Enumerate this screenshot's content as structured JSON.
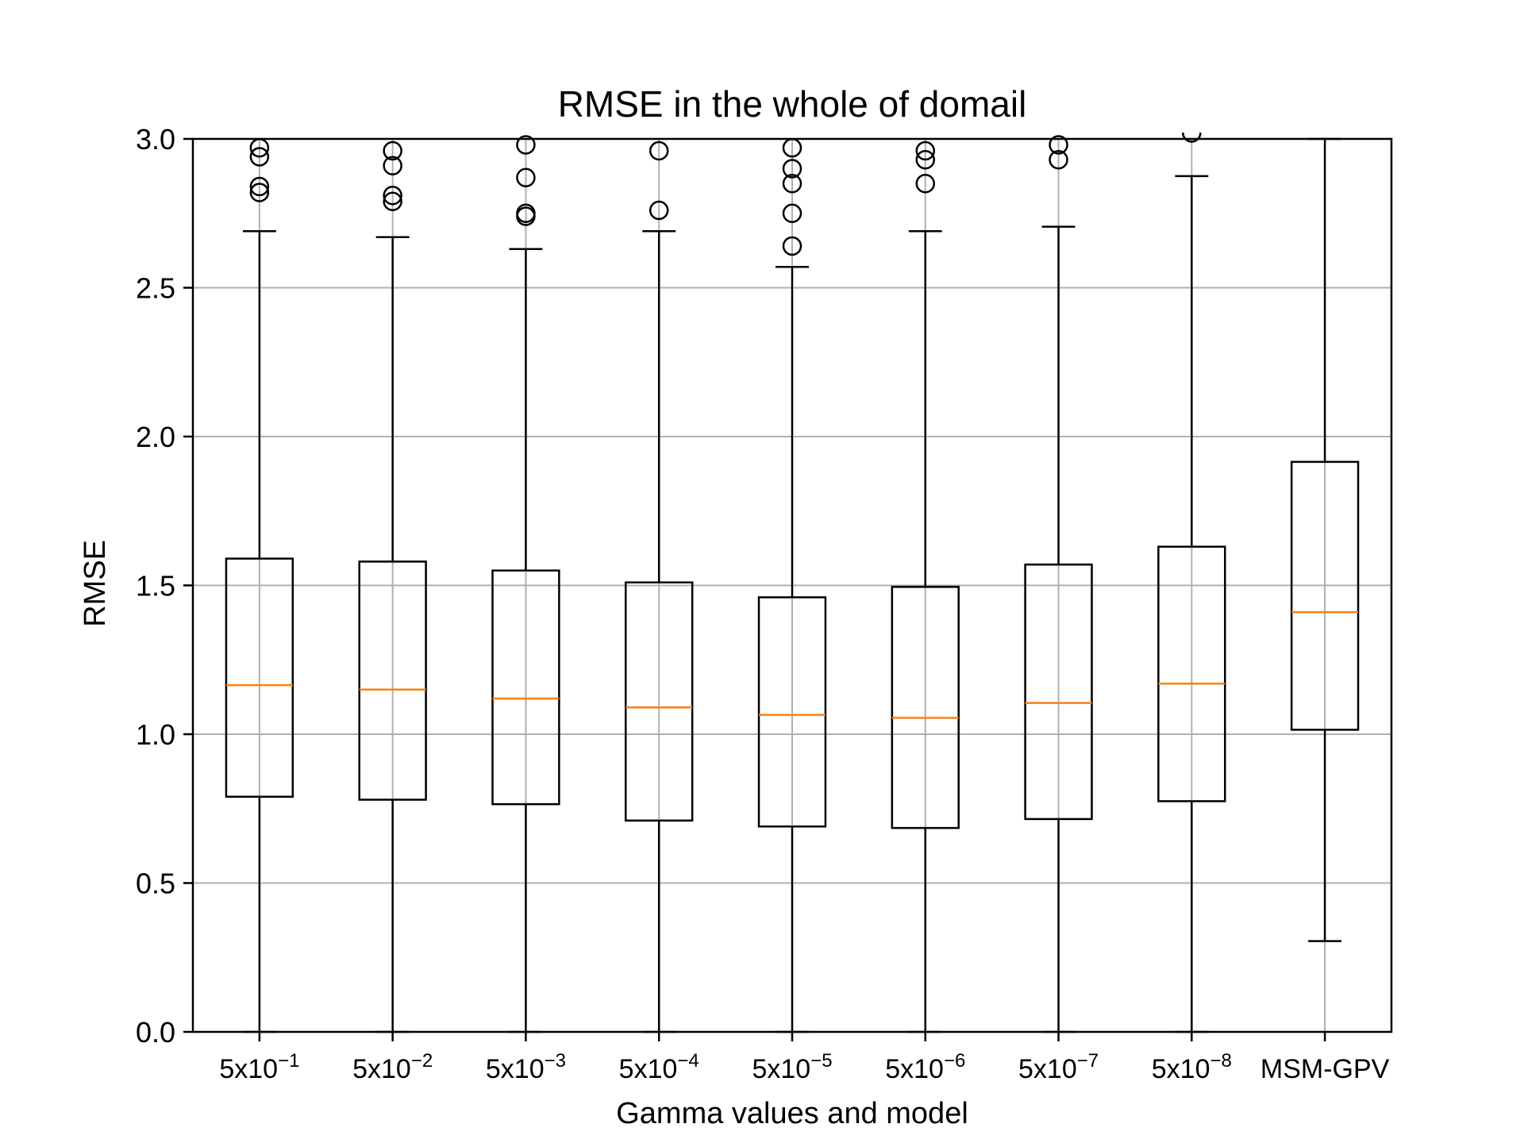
{
  "chart_data": {
    "type": "box",
    "title": "RMSE in the whole of domail",
    "xlabel": "Gamma values and model",
    "ylabel": "RMSE",
    "ylim": [
      0,
      3.0
    ],
    "yticks": [
      0.0,
      0.5,
      1.0,
      1.5,
      2.0,
      2.5,
      3.0
    ],
    "ytick_labels": [
      "0.0",
      "0.5",
      "1.0",
      "1.5",
      "2.0",
      "2.5",
      "3.0"
    ],
    "grid": true,
    "categories": [
      {
        "base": "5x10",
        "exp": "−1"
      },
      {
        "base": "5x10",
        "exp": "−2"
      },
      {
        "base": "5x10",
        "exp": "−3"
      },
      {
        "base": "5x10",
        "exp": "−4"
      },
      {
        "base": "5x10",
        "exp": "−5"
      },
      {
        "base": "5x10",
        "exp": "−6"
      },
      {
        "base": "5x10",
        "exp": "−7"
      },
      {
        "base": "5x10",
        "exp": "−8"
      },
      {
        "base": "MSM-GPV",
        "exp": ""
      }
    ],
    "boxes": [
      {
        "whisker_low": 0.0,
        "q1": 0.79,
        "median": 1.165,
        "q3": 1.59,
        "whisker_high": 2.69,
        "outliers": [
          2.82,
          2.84,
          2.94,
          2.97
        ]
      },
      {
        "whisker_low": 0.0,
        "q1": 0.78,
        "median": 1.15,
        "q3": 1.58,
        "whisker_high": 2.67,
        "outliers": [
          2.79,
          2.81,
          2.91,
          2.96
        ]
      },
      {
        "whisker_low": 0.0,
        "q1": 0.765,
        "median": 1.12,
        "q3": 1.55,
        "whisker_high": 2.63,
        "outliers": [
          2.74,
          2.75,
          2.87,
          2.98
        ]
      },
      {
        "whisker_low": 0.0,
        "q1": 0.71,
        "median": 1.09,
        "q3": 1.51,
        "whisker_high": 2.69,
        "outliers": [
          2.76,
          2.96
        ]
      },
      {
        "whisker_low": 0.0,
        "q1": 0.69,
        "median": 1.065,
        "q3": 1.46,
        "whisker_high": 2.57,
        "outliers": [
          2.64,
          2.75,
          2.85,
          2.9,
          2.97
        ]
      },
      {
        "whisker_low": 0.0,
        "q1": 0.685,
        "median": 1.055,
        "q3": 1.495,
        "whisker_high": 2.69,
        "outliers": [
          2.85,
          2.93,
          2.96
        ]
      },
      {
        "whisker_low": 0.0,
        "q1": 0.715,
        "median": 1.105,
        "q3": 1.57,
        "whisker_high": 2.705,
        "outliers": [
          2.93,
          2.98
        ]
      },
      {
        "whisker_low": 0.0,
        "q1": 0.775,
        "median": 1.17,
        "q3": 1.63,
        "whisker_high": 2.875,
        "outliers": [
          3.02
        ]
      },
      {
        "whisker_low": 0.305,
        "q1": 1.015,
        "median": 1.41,
        "q3": 1.915,
        "whisker_high": 3.0,
        "outliers": []
      }
    ],
    "colors": {
      "box": "#000000",
      "median": "#ff7f0e",
      "grid": "#b0b0b0"
    }
  }
}
